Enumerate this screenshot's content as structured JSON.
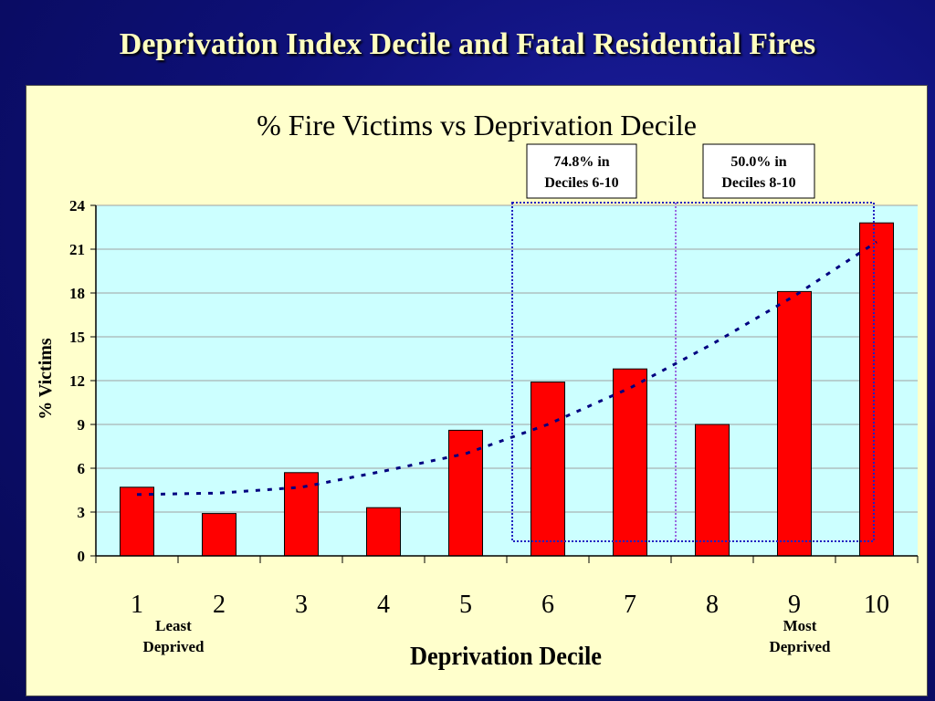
{
  "slide": {
    "title": "Deprivation Index Decile and Fatal Residential Fires"
  },
  "colors": {
    "bar": "#ff0000",
    "plot_bg": "#ccffff",
    "panel_bg": "#ffffcc",
    "trend": "#000080"
  },
  "chart_data": {
    "type": "bar",
    "title": "% Fire Victims vs  Deprivation Decile",
    "xlabel": "Deprivation Decile",
    "ylabel": "% Victims",
    "categories": [
      "1",
      "2",
      "3",
      "4",
      "5",
      "6",
      "7",
      "8",
      "9",
      "10"
    ],
    "values": [
      4.7,
      2.9,
      5.7,
      3.3,
      8.6,
      11.9,
      12.8,
      9.0,
      18.1,
      22.8
    ],
    "ylim": [
      0,
      24
    ],
    "yticks": [
      0,
      3,
      6,
      9,
      12,
      15,
      18,
      21,
      24
    ],
    "grid": true,
    "trendline": {
      "style": "dotted",
      "values": [
        4.2,
        4.3,
        4.7,
        5.8,
        7.0,
        9.0,
        11.5,
        14.5,
        17.8,
        21.5
      ]
    },
    "annotations": [
      {
        "text_line1": "74.8% in",
        "text_line2": "Deciles 6-10",
        "x_from": 6,
        "x_to": 10
      },
      {
        "text_line1": "50.0% in",
        "text_line2": "Deciles 8-10",
        "x_from": 8,
        "x_to": 10
      }
    ],
    "x_notes": {
      "left_line1": "Least",
      "left_line2": "Deprived",
      "right_line1": "Most",
      "right_line2": "Deprived"
    }
  }
}
